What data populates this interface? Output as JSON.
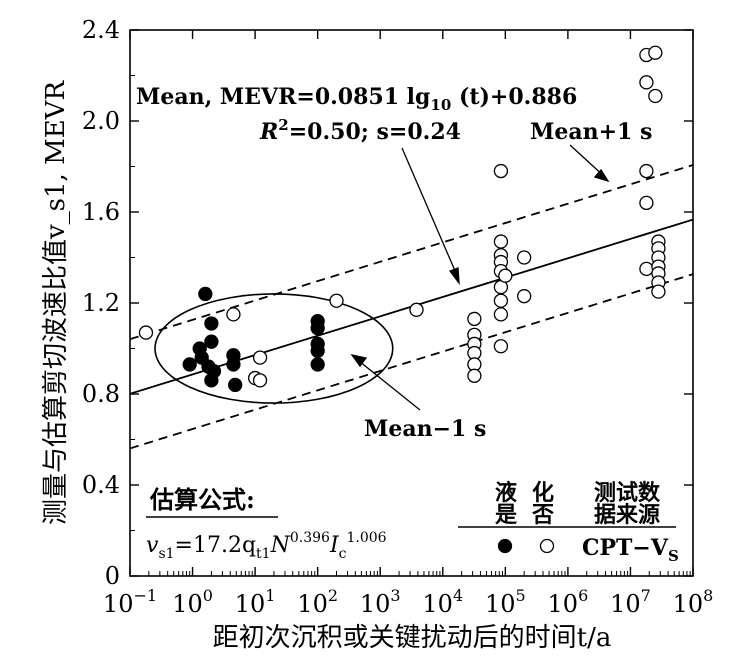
{
  "chart_data": {
    "type": "scatter",
    "xscale": "log10",
    "xlim": [
      0.1,
      100000000
    ],
    "ylim": [
      0,
      2.4
    ],
    "xticks": [
      {
        "value": 0.1,
        "base": "10",
        "exp": "−1"
      },
      {
        "value": 1,
        "base": "10",
        "exp": "0"
      },
      {
        "value": 10,
        "base": "10",
        "exp": "1"
      },
      {
        "value": 100,
        "base": "10",
        "exp": "2"
      },
      {
        "value": 1000,
        "base": "10",
        "exp": "3"
      },
      {
        "value": 10000,
        "base": "10",
        "exp": "4"
      },
      {
        "value": 100000,
        "base": "10",
        "exp": "5"
      },
      {
        "value": 1000000,
        "base": "10",
        "exp": "6"
      },
      {
        "value": 10000000,
        "base": "10",
        "exp": "7"
      },
      {
        "value": 100000000,
        "base": "10",
        "exp": "8"
      }
    ],
    "yticks": [
      "0",
      "0.4",
      "0.8",
      "1.2",
      "1.6",
      "2.0",
      "2.4"
    ],
    "xlabel": "距初次沉积或关键扰动后的时间t/a",
    "ylabel": "测量与估算剪切波速比值v_s1, MEVR",
    "series": [
      {
        "name": "液化",
        "marker": "filled-circle",
        "points": [
          [
            0.9,
            0.93
          ],
          [
            1.3,
            1.0
          ],
          [
            1.4,
            0.96
          ],
          [
            1.6,
            1.24
          ],
          [
            1.8,
            0.92
          ],
          [
            2.0,
            0.86
          ],
          [
            2.0,
            1.11
          ],
          [
            2.0,
            1.03
          ],
          [
            2.2,
            0.9
          ],
          [
            4.5,
            0.97
          ],
          [
            4.5,
            0.93
          ],
          [
            4.8,
            0.84
          ],
          [
            100,
            1.12
          ],
          [
            100,
            1.09
          ],
          [
            100,
            1.02
          ],
          [
            100,
            0.99
          ],
          [
            100,
            0.93
          ]
        ]
      },
      {
        "name": "否",
        "marker": "open-circle",
        "points": [
          [
            0.18,
            1.07
          ],
          [
            4.5,
            1.15
          ],
          [
            10,
            0.87
          ],
          [
            12,
            0.96
          ],
          [
            12,
            0.86
          ],
          [
            200,
            1.21
          ],
          [
            3800,
            1.17
          ],
          [
            32000,
            1.13
          ],
          [
            32000,
            1.06
          ],
          [
            32000,
            1.02
          ],
          [
            32000,
            0.98
          ],
          [
            32000,
            0.93
          ],
          [
            32000,
            0.88
          ],
          [
            85000,
            1.78
          ],
          [
            85000,
            1.47
          ],
          [
            85000,
            1.41
          ],
          [
            85000,
            1.38
          ],
          [
            85000,
            1.34
          ],
          [
            85000,
            1.27
          ],
          [
            85000,
            1.21
          ],
          [
            85000,
            1.15
          ],
          [
            85000,
            1.01
          ],
          [
            100000,
            1.32
          ],
          [
            200000,
            1.4
          ],
          [
            200000,
            1.23
          ],
          [
            18000000,
            2.29
          ],
          [
            18000000,
            2.17
          ],
          [
            18000000,
            1.78
          ],
          [
            18000000,
            1.64
          ],
          [
            18000000,
            1.35
          ],
          [
            25000000,
            2.3
          ],
          [
            25000000,
            2.11
          ],
          [
            28000000,
            1.47
          ],
          [
            28000000,
            1.44
          ],
          [
            28000000,
            1.4
          ],
          [
            28000000,
            1.36
          ],
          [
            28000000,
            1.33
          ],
          [
            28000000,
            1.29
          ],
          [
            28000000,
            1.25
          ]
        ]
      }
    ],
    "lines": [
      {
        "name": "Mean",
        "style": "solid",
        "slope": 0.0851,
        "intercept": 0.886
      },
      {
        "name": "Mean+1 s",
        "style": "dashed",
        "slope": 0.0851,
        "intercept": 1.126
      },
      {
        "name": "Mean−1 s",
        "style": "dashed",
        "slope": 0.0851,
        "intercept": 0.646
      }
    ],
    "ellipse": {
      "x_center_log": 1.3,
      "y_center": 1.0,
      "x_radius_log": 1.9,
      "y_radius": 0.24
    }
  },
  "annotations": {
    "mean_eq": "Mean, MEVR=0.0851 lg",
    "mean_eq_sub": "10",
    "mean_eq_rest": " (t)+0.886",
    "r2_prefix": "R",
    "r2_sup": "2",
    "r2_rest": "=0.50; s=0.24",
    "mean_plus": "Mean+1 s",
    "mean_minus": "Mean−1 s"
  },
  "formula": {
    "title": "估算公式:",
    "v": "v",
    "v_sub": "s1",
    "eq1": "=17.2q",
    "q_sub": "t1",
    "N": "N",
    "n_exp": "0.396",
    "I": "I",
    "i_sub": "c",
    "i_exp": "1.006"
  },
  "legend": {
    "h1_top": "液",
    "h1_bot": "是",
    "h2_top": "化",
    "h2_bot": "否",
    "h3_top": "测试数",
    "h3_bot": "据来源",
    "source": "CPT−V",
    "source_sub": "S"
  }
}
